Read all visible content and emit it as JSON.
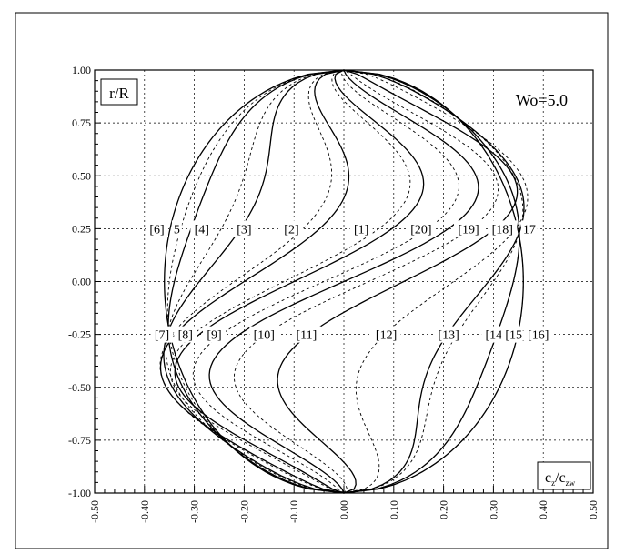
{
  "chart_data": {
    "type": "line",
    "xlim": [
      -0.5,
      0.5
    ],
    "ylim": [
      -1.0,
      1.0
    ],
    "x_ticks": [
      "-0.50",
      "-0.40",
      "-0.30",
      "-0.20",
      "-0.10",
      "0.00",
      "0.10",
      "0.20",
      "0.30",
      "0.40",
      "0.50"
    ],
    "y_ticks": [
      "1.00",
      "0.75",
      "0.50",
      "0.25",
      "0.00",
      "-0.25",
      "-0.50",
      "-0.75",
      "-1.00"
    ],
    "ylabel_box": "r/R",
    "xlabel_box": {
      "base": "c",
      "sub": "z",
      "den_base": "c",
      "den_sub": "zw"
    },
    "annotation": "Wo=5.0",
    "grid": true,
    "profile_amplitude": 0.36,
    "series_solid": [
      {
        "name": "[1]",
        "a": 0.0
      },
      {
        "name": "[2]",
        "a": -0.1
      },
      {
        "name": "[3]",
        "a": -0.2
      },
      {
        "name": "[4]",
        "a": -0.29
      },
      {
        "name": "5",
        "a": -0.34
      },
      {
        "name": "[6]",
        "a": -0.36
      },
      {
        "name": "17",
        "a": 0.36
      },
      {
        "name": "[18]",
        "a": 0.34
      },
      {
        "name": "[19]",
        "a": 0.29
      },
      {
        "name": "[20]",
        "a": 0.12
      }
    ],
    "series_dashed": [
      {
        "name": "[7]",
        "a": -0.35
      },
      {
        "name": "[8]",
        "a": -0.31
      },
      {
        "name": "[9]",
        "a": -0.22
      },
      {
        "name": "[10]",
        "a": -0.12
      },
      {
        "name": "[11]",
        "a": -0.04
      },
      {
        "name": "[12]",
        "a": 0.05
      },
      {
        "name": "[13]",
        "a": 0.22
      },
      {
        "name": "[14]",
        "a": 0.3
      },
      {
        "name": "[15]",
        "a": 0.34
      },
      {
        "name": "[16]",
        "a": 0.36
      }
    ],
    "labels_top": [
      {
        "text": "[6]",
        "x": -0.375,
        "y": 0.25
      },
      {
        "text": "5",
        "x": -0.335,
        "y": 0.25
      },
      {
        "text": "[4]",
        "x": -0.285,
        "y": 0.25
      },
      {
        "text": "[3]",
        "x": -0.2,
        "y": 0.25
      },
      {
        "text": "[2]",
        "x": -0.105,
        "y": 0.25
      },
      {
        "text": "[1]",
        "x": 0.035,
        "y": 0.25
      },
      {
        "text": "[20]",
        "x": 0.155,
        "y": 0.25
      },
      {
        "text": "[19]",
        "x": 0.25,
        "y": 0.25
      },
      {
        "text": "[18]",
        "x": 0.318,
        "y": 0.25
      },
      {
        "text": "17",
        "x": 0.372,
        "y": 0.25
      }
    ],
    "labels_bottom": [
      {
        "text": "[7]",
        "x": -0.365,
        "y": -0.25
      },
      {
        "text": "[8]",
        "x": -0.318,
        "y": -0.25
      },
      {
        "text": "[9]",
        "x": -0.26,
        "y": -0.25
      },
      {
        "text": "[10]",
        "x": -0.16,
        "y": -0.25
      },
      {
        "text": "[11]",
        "x": -0.075,
        "y": -0.25
      },
      {
        "text": "[12]",
        "x": 0.085,
        "y": -0.25
      },
      {
        "text": "[13]",
        "x": 0.21,
        "y": -0.25
      },
      {
        "text": "[14]",
        "x": 0.305,
        "y": -0.25
      },
      {
        "text": "[15]",
        "x": 0.345,
        "y": -0.25
      },
      {
        "text": "[16]",
        "x": 0.39,
        "y": -0.25
      }
    ]
  }
}
